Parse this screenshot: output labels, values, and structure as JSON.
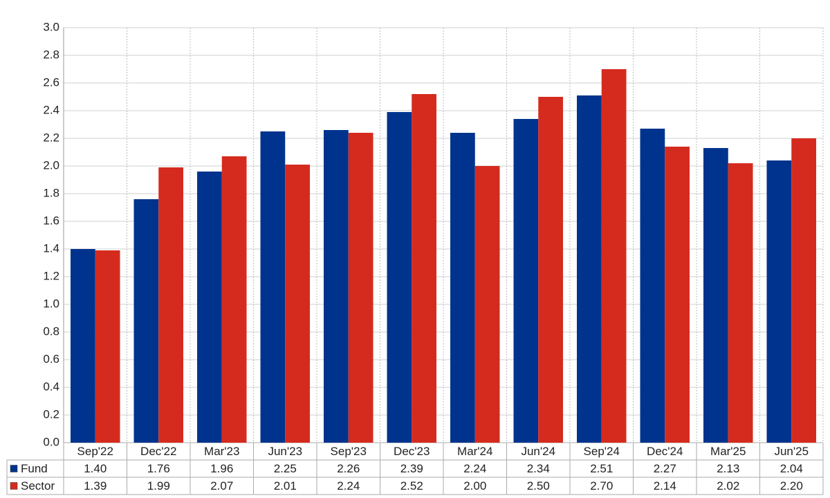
{
  "chart_data": {
    "type": "bar",
    "categories": [
      "Sep'22",
      "Dec'22",
      "Mar'23",
      "Jun'23",
      "Sep'23",
      "Dec'23",
      "Mar'24",
      "Jun'24",
      "Sep'24",
      "Dec'24",
      "Mar'25",
      "Jun'25"
    ],
    "series": [
      {
        "name": "Fund",
        "color": "#00338d",
        "values": [
          1.4,
          1.76,
          1.96,
          2.25,
          2.26,
          2.39,
          2.24,
          2.34,
          2.51,
          2.27,
          2.13,
          2.04
        ],
        "value_labels": [
          "1.40",
          "1.76",
          "1.96",
          "2.25",
          "2.26",
          "2.39",
          "2.24",
          "2.34",
          "2.51",
          "2.27",
          "2.13",
          "2.04"
        ]
      },
      {
        "name": "Sector",
        "color": "#d52b1e",
        "values": [
          1.39,
          1.99,
          2.07,
          2.01,
          2.24,
          2.52,
          2.0,
          2.5,
          2.7,
          2.14,
          2.02,
          2.2
        ],
        "value_labels": [
          "1.39",
          "1.99",
          "2.07",
          "2.01",
          "2.24",
          "2.52",
          "2.00",
          "2.50",
          "2.70",
          "2.14",
          "2.02",
          "2.20"
        ]
      }
    ],
    "ylim": [
      0,
      3
    ],
    "yticks": [
      {
        "value": 0,
        "label": "0.0"
      },
      0.2,
      0.4,
      0.6,
      0.8,
      {
        "value": 1,
        "label": "1.0"
      },
      1.2,
      1.4,
      1.6,
      1.8,
      {
        "value": 2,
        "label": "2.0"
      },
      2.2,
      2.4,
      2.6,
      2.8,
      {
        "value": 3,
        "label": "3.0"
      }
    ],
    "grid": true
  }
}
